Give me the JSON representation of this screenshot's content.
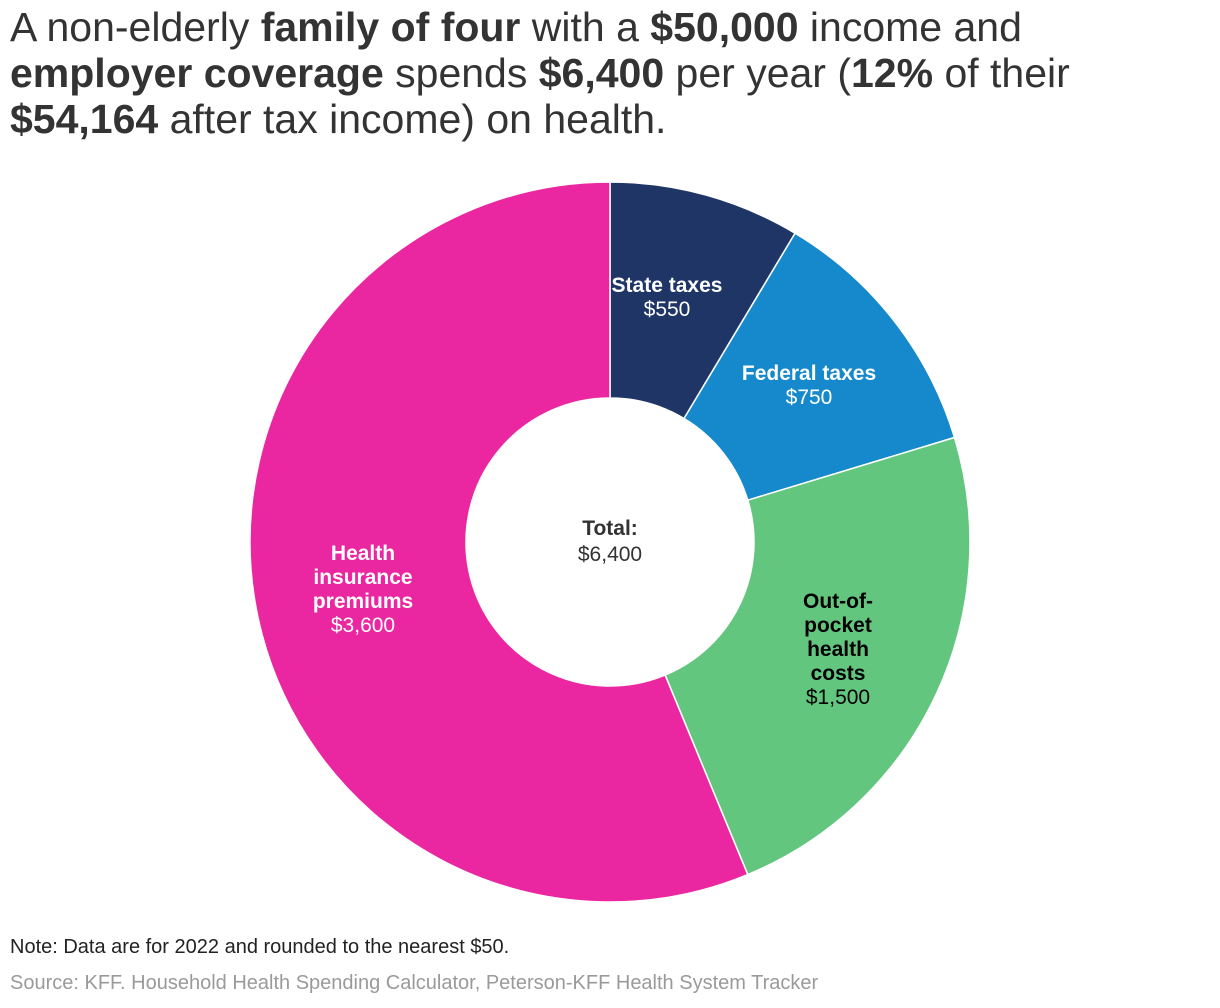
{
  "title": {
    "parts": [
      {
        "text": "A non-elderly ",
        "bold": false
      },
      {
        "text": "family of four",
        "bold": true
      },
      {
        "text": " with a ",
        "bold": false
      },
      {
        "text": "$50,000",
        "bold": true
      },
      {
        "text": " income and ",
        "bold": false
      },
      {
        "text": "employer coverage",
        "bold": true
      },
      {
        "text": " spends ",
        "bold": false
      },
      {
        "text": "$6,400",
        "bold": true
      },
      {
        "text": " per year (",
        "bold": false
      },
      {
        "text": "12%",
        "bold": true
      },
      {
        "text": " of their ",
        "bold": false
      },
      {
        "text": "$54,164",
        "bold": true
      },
      {
        "text": " after tax income) on health.",
        "bold": false
      }
    ]
  },
  "chart_data": {
    "type": "pie",
    "variant": "donut",
    "title": "A non-elderly family of four with a $50,000 income and employer coverage spends $6,400 per year (12% of their $54,164 after tax income) on health.",
    "center_label": {
      "title": "Total:",
      "value": "$6,400"
    },
    "total": 6400,
    "slices": [
      {
        "label": "State taxes",
        "value": 550,
        "value_label": "$550",
        "color": "#1f3566",
        "text_color": "#ffffff"
      },
      {
        "label": "Federal taxes",
        "value": 750,
        "value_label": "$750",
        "color": "#1589cb",
        "text_color": "#ffffff"
      },
      {
        "label": "Out-of-pocket health costs",
        "label_lines": [
          "Out-of-",
          "pocket",
          "health",
          "costs"
        ],
        "value": 1500,
        "value_label": "$1,500",
        "color": "#63c67e",
        "text_color": "#000000"
      },
      {
        "label": "Health insurance premiums",
        "label_lines": [
          "Health",
          "insurance",
          "premiums"
        ],
        "value": 3600,
        "value_label": "$3,600",
        "color": "#ea27a0",
        "text_color": "#ffffff"
      }
    ],
    "start": "12 o'clock",
    "direction": "clockwise"
  },
  "note": "Note: Data are for 2022 and rounded to the nearest $50.",
  "source": "Source: KFF. Household Health Spending Calculator, Peterson-KFF Health System Tracker"
}
